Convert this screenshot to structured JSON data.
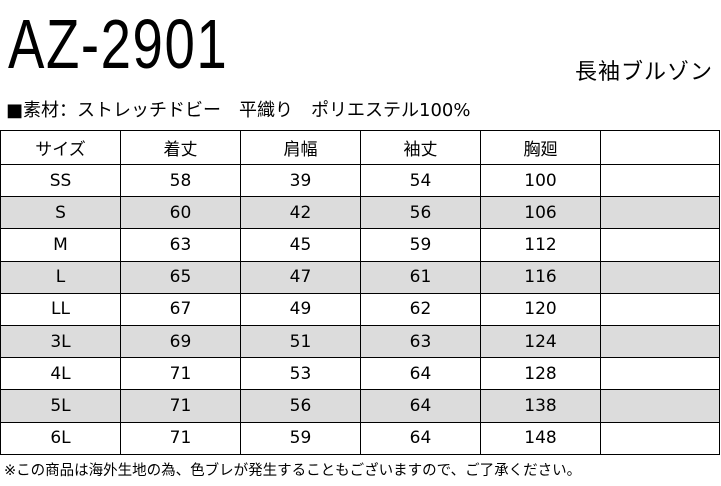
{
  "header": {
    "title": "AZ-2901",
    "subtitle": "長袖ブルゾン"
  },
  "material": "■素材：ストレッチドビー　平織り　ポリエステル100%",
  "table": {
    "columns": [
      "サイズ",
      "着丈",
      "肩幅",
      "袖丈",
      "胸廻"
    ],
    "rows": [
      [
        "SS",
        58,
        39,
        54,
        100
      ],
      [
        "S",
        60,
        42,
        56,
        106
      ],
      [
        "M",
        63,
        45,
        59,
        112
      ],
      [
        "L",
        65,
        47,
        61,
        116
      ],
      [
        "LL",
        67,
        49,
        62,
        120
      ],
      [
        "3L",
        69,
        51,
        63,
        124
      ],
      [
        "4L",
        71,
        53,
        64,
        128
      ],
      [
        "5L",
        71,
        56,
        64,
        138
      ],
      [
        "6L",
        71,
        59,
        64,
        148
      ]
    ]
  },
  "note": "※この商品は海外生地の為、色ブレが発生することもございますので、ご了承ください。"
}
